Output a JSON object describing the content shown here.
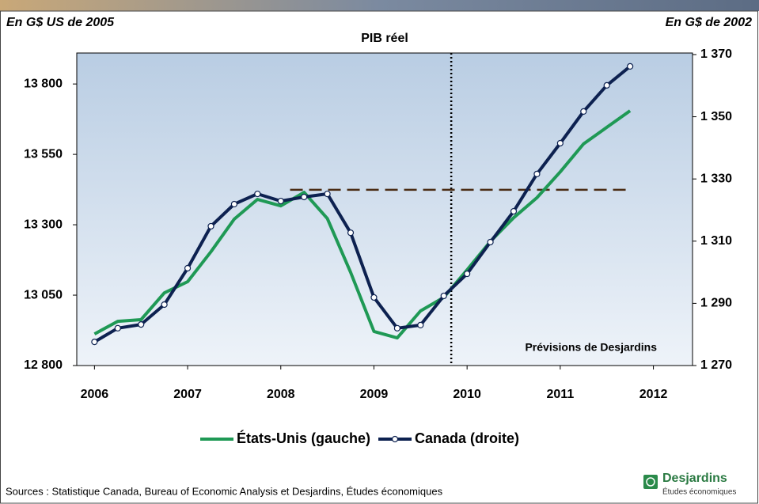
{
  "chart_data": {
    "type": "line",
    "title": "PIB réel",
    "y_axis_label": "En G$ US de 2005",
    "y2_axis_label": "En G$ de 2002",
    "annotation": "Prévisions de Desjardins",
    "source": "Sources : Statistique Canada, Bureau of Economic Analysis et Desjardins, Études économiques",
    "logo": {
      "name": "Desjardins",
      "subtitle": "Études économiques"
    },
    "x": [
      2006,
      2006.25,
      2006.5,
      2006.75,
      2007,
      2007.25,
      2007.5,
      2007.75,
      2008,
      2008.25,
      2008.5,
      2008.75,
      2009,
      2009.25,
      2009.5,
      2009.75,
      2010,
      2010.25,
      2010.5,
      2010.75,
      2011,
      2011.25,
      2011.5,
      2011.75
    ],
    "series": [
      {
        "name": "États-Unis (gauche)",
        "color": "#1f9955",
        "axis": "y",
        "marker": false,
        "values": [
          12912,
          12957,
          12963,
          13058,
          13098,
          13204,
          13320,
          13390,
          13367,
          13415,
          13322,
          13131,
          12921,
          12898,
          12994,
          13042,
          13140,
          13241,
          13325,
          13396,
          13488,
          13587,
          13646,
          13705
        ]
      },
      {
        "name": "Canada (droite)",
        "color": "#0d2150",
        "axis": "y2",
        "marker": true,
        "values": [
          1277.6,
          1282.0,
          1283.2,
          1289.6,
          1301.3,
          1314.8,
          1321.9,
          1325.2,
          1322.9,
          1324.2,
          1325.2,
          1312.7,
          1291.9,
          1282.0,
          1283.0,
          1292.4,
          1299.5,
          1309.7,
          1319.6,
          1331.6,
          1341.5,
          1351.7,
          1360.1,
          1366.2
        ]
      }
    ],
    "xlim": [
      2005.81,
      2012.42
    ],
    "xticks": [
      2006,
      2007,
      2008,
      2009,
      2010,
      2011,
      2012
    ],
    "ylim": [
      12800,
      13910
    ],
    "yticks": [
      {
        "value": 12800,
        "label": "12 800"
      },
      {
        "value": 13050,
        "label": "13 050"
      },
      {
        "value": 13300,
        "label": "13 300"
      },
      {
        "value": 13550,
        "label": "13 550"
      },
      {
        "value": 13800,
        "label": "13 800"
      }
    ],
    "y2lim": [
      1270,
      1370.5
    ],
    "y2ticks": [
      {
        "value": 1270,
        "label": "1 270"
      },
      {
        "value": 1290,
        "label": "1 290"
      },
      {
        "value": 1310,
        "label": "1 310"
      },
      {
        "value": 1330,
        "label": "1 330"
      },
      {
        "value": 1350,
        "label": "1 350"
      },
      {
        "value": 1370,
        "label": "1 370"
      }
    ],
    "forecast_start": 2009.83,
    "reference_line": {
      "value": 1326.5,
      "axis": "y2",
      "x": [
        2008.1,
        2011.75
      ],
      "color": "#4a2c14"
    },
    "legend": "bottom"
  }
}
